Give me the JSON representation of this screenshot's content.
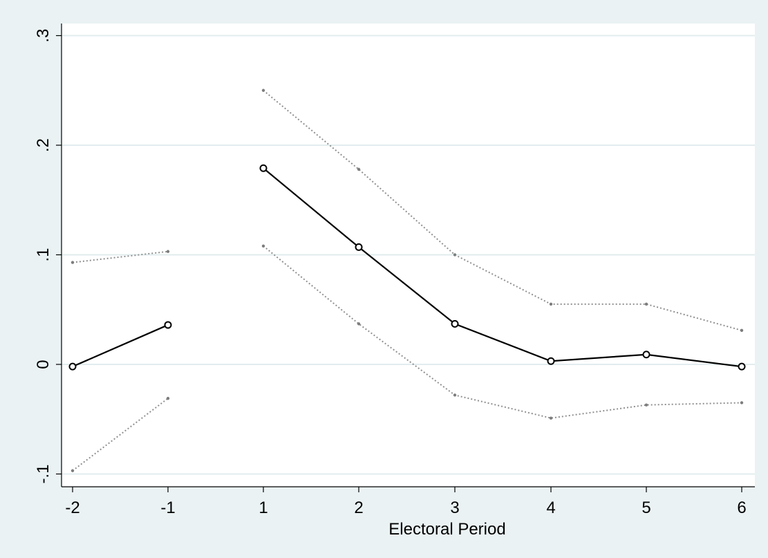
{
  "chart_data": {
    "type": "line",
    "title": "",
    "xlabel": "Electoral Period",
    "ylabel": "",
    "x_ticks": [
      -2,
      -1,
      1,
      2,
      3,
      4,
      5,
      6
    ],
    "x_tick_labels": [
      "-2",
      "-1",
      "1",
      "2",
      "3",
      "4",
      "5",
      "6"
    ],
    "y_ticks": [
      -0.1,
      0,
      0.1,
      0.2,
      0.3
    ],
    "y_tick_labels": [
      "-.1",
      "0",
      ".1",
      ".2",
      ".3"
    ],
    "ylim": [
      -0.1,
      0.3
    ],
    "grid": "horizontal",
    "legend": "none",
    "series": [
      {
        "role": "estimate",
        "style": "solid line with hollow circle markers",
        "color": "#000000",
        "segments": [
          {
            "x": [
              -2,
              -1
            ],
            "y": [
              -0.002,
              0.036
            ]
          },
          {
            "x": [
              1,
              2,
              3,
              4,
              5,
              6
            ],
            "y": [
              0.179,
              0.107,
              0.037,
              0.003,
              0.009,
              -0.002
            ]
          }
        ]
      },
      {
        "role": "upper confidence bound",
        "style": "dotted line with small dot markers",
        "color": "#8f8f8f",
        "segments": [
          {
            "x": [
              -2,
              -1
            ],
            "y": [
              0.093,
              0.103
            ]
          },
          {
            "x": [
              1,
              2,
              3,
              4,
              5,
              6
            ],
            "y": [
              0.25,
              0.178,
              0.1,
              0.055,
              0.055,
              0.031
            ]
          }
        ]
      },
      {
        "role": "lower confidence bound",
        "style": "dotted line with small dot markers",
        "color": "#8f8f8f",
        "segments": [
          {
            "x": [
              -2,
              -1
            ],
            "y": [
              -0.097,
              -0.031
            ]
          },
          {
            "x": [
              1,
              2,
              3,
              4,
              5,
              6
            ],
            "y": [
              0.108,
              0.037,
              -0.028,
              -0.049,
              -0.037,
              -0.035
            ]
          }
        ]
      }
    ]
  },
  "colors": {
    "outer_background": "#eaf2f3",
    "plot_background": "#ffffff",
    "grid": "#e2ecee",
    "axis": "#000000"
  }
}
